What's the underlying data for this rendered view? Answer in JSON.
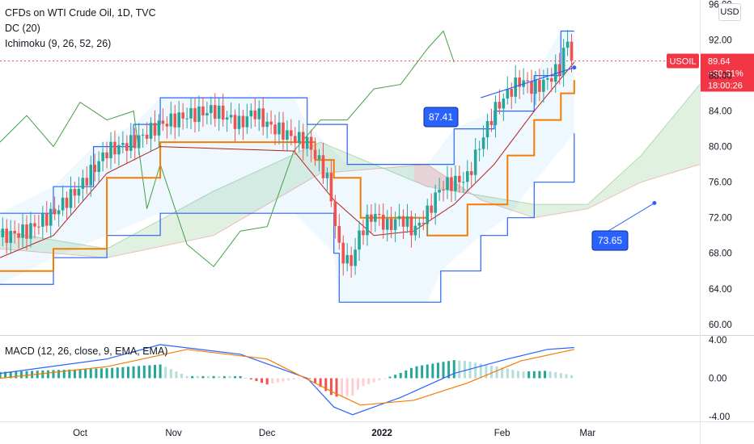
{
  "header": {
    "title": "CFDs on WTI Crude Oil, 1D, TVC",
    "indicator_dc": "DC (20)",
    "indicator_ichimoku": "Ichimoku (9, 26, 52, 26)",
    "currency_button": "USD"
  },
  "macd_pane": {
    "title": "MACD (12, 26, close, 9, EMA, EMA)"
  },
  "price_labels": {
    "symbol": "USOIL",
    "price": "89.64",
    "change": "+30.31%",
    "countdown": "18:00:26"
  },
  "annotations": [
    {
      "text": "87.41"
    },
    {
      "text": "73.65"
    }
  ],
  "colors": {
    "up": "#26a69a",
    "down": "#ef5350",
    "donchian": "#2962ff",
    "kijun": "#f57c00",
    "tenkan": "#b71c1c",
    "lagging": "#43a047",
    "cloud_up": "#c8e6c9",
    "cloud_down": "#ffcdd2",
    "macd": "#2962ff",
    "signal": "#f57c00",
    "hist_up_strong": "#26a69a",
    "hist_up_weak": "#b2dfdb",
    "hist_down_strong": "#ef5350",
    "hist_down_weak": "#ffcdd2",
    "symbol_bg": "#f23645"
  },
  "chart_data": {
    "type": "candlestick",
    "price_axis": {
      "ticks": [
        "96.00",
        "92.00",
        "88.00",
        "84.00",
        "80.00",
        "76.00",
        "72.00",
        "68.00",
        "64.00",
        "60.00"
      ],
      "range": [
        58.8,
        96.5
      ]
    },
    "macd_axis": {
      "ticks": [
        "4.00",
        "0.00",
        "-4.00"
      ],
      "range": [
        -4.5,
        4.5
      ]
    },
    "x_axis": {
      "ticks": [
        "Oct",
        "Nov",
        "Dec",
        "2022",
        "Feb",
        "Mar"
      ]
    },
    "last_price": 89.64,
    "price_series_keypoints": [
      [
        0,
        69.8
      ],
      [
        10,
        70.5
      ],
      [
        20,
        72.5
      ],
      [
        30,
        75.5
      ],
      [
        40,
        79.5
      ],
      [
        50,
        80.5
      ],
      [
        60,
        82.5
      ],
      [
        70,
        83.5
      ],
      [
        80,
        84.1
      ],
      [
        90,
        82.5
      ],
      [
        95,
        84.0
      ],
      [
        100,
        82.5
      ],
      [
        110,
        81.0
      ],
      [
        115,
        80.5
      ],
      [
        120,
        78.0
      ],
      [
        123,
        76.0
      ],
      [
        127,
        68.5
      ],
      [
        131,
        66.5
      ],
      [
        135,
        70.5
      ],
      [
        140,
        72.5
      ],
      [
        145,
        71.0
      ],
      [
        150,
        72.0
      ],
      [
        155,
        70.5
      ],
      [
        160,
        72.5
      ],
      [
        165,
        75.5
      ],
      [
        170,
        76.0
      ],
      [
        175,
        76.5
      ],
      [
        180,
        80.5
      ],
      [
        185,
        84.0
      ],
      [
        190,
        86.0
      ],
      [
        195,
        87.5
      ],
      [
        200,
        86.5
      ],
      [
        205,
        87.5
      ],
      [
        210,
        89.0
      ],
      [
        212,
        92.3
      ],
      [
        215,
        89.2
      ]
    ],
    "donchian_upper": [
      [
        0,
        72.5
      ],
      [
        20,
        75.5
      ],
      [
        35,
        80.0
      ],
      [
        50,
        82.5
      ],
      [
        60,
        85.5
      ],
      [
        110,
        85.5
      ],
      [
        115,
        82.5
      ],
      [
        130,
        78.0
      ],
      [
        160,
        78.0
      ],
      [
        170,
        82.0
      ],
      [
        185,
        84.0
      ],
      [
        200,
        88.0
      ],
      [
        210,
        93.0
      ],
      [
        215,
        93.0
      ]
    ],
    "donchian_lower": [
      [
        0,
        64.5
      ],
      [
        20,
        67.5
      ],
      [
        40,
        70.0
      ],
      [
        60,
        72.5
      ],
      [
        110,
        72.5
      ],
      [
        125,
        68.0
      ],
      [
        127,
        62.5
      ],
      [
        160,
        62.5
      ],
      [
        165,
        66.0
      ],
      [
        180,
        70.0
      ],
      [
        190,
        72.0
      ],
      [
        200,
        76.0
      ],
      [
        215,
        81.5
      ]
    ],
    "kijun": [
      [
        0,
        66.0
      ],
      [
        20,
        68.5
      ],
      [
        40,
        76.5
      ],
      [
        60,
        80.5
      ],
      [
        110,
        80.5
      ],
      [
        118,
        78.5
      ],
      [
        125,
        76.5
      ],
      [
        135,
        72.0
      ],
      [
        160,
        70.0
      ],
      [
        175,
        73.5
      ],
      [
        190,
        79.0
      ],
      [
        200,
        83.0
      ],
      [
        210,
        86.0
      ],
      [
        215,
        87.5
      ]
    ],
    "tenkan": [
      [
        0,
        67.5
      ],
      [
        20,
        70.0
      ],
      [
        40,
        77.0
      ],
      [
        60,
        80.0
      ],
      [
        110,
        79.5
      ],
      [
        125,
        74.0
      ],
      [
        140,
        70.0
      ],
      [
        155,
        70.5
      ],
      [
        170,
        73.5
      ],
      [
        185,
        78.0
      ],
      [
        200,
        84.0
      ],
      [
        215,
        89.5
      ]
    ],
    "lagging_span": [
      [
        0,
        80.5
      ],
      [
        10,
        83.5
      ],
      [
        20,
        80.0
      ],
      [
        30,
        85.0
      ],
      [
        40,
        83.0
      ],
      [
        50,
        84.0
      ],
      [
        55,
        73.0
      ],
      [
        60,
        78.0
      ],
      [
        70,
        69.0
      ],
      [
        80,
        66.5
      ],
      [
        90,
        70.5
      ],
      [
        100,
        71.0
      ],
      [
        110,
        79.5
      ],
      [
        120,
        83.0
      ],
      [
        130,
        83.0
      ],
      [
        140,
        86.5
      ],
      [
        150,
        87.0
      ],
      [
        160,
        91.0
      ],
      [
        166,
        93.0
      ],
      [
        170,
        89.5
      ]
    ],
    "cloud_span_a": [
      [
        0,
        70.5
      ],
      [
        40,
        68.5
      ],
      [
        80,
        75.0
      ],
      [
        120,
        80.5
      ],
      [
        160,
        75.5
      ],
      [
        180,
        74.5
      ],
      [
        200,
        73.5
      ],
      [
        220,
        73.5
      ],
      [
        240,
        79.0
      ],
      [
        262,
        87.0
      ]
    ],
    "cloud_span_b": [
      [
        0,
        68.5
      ],
      [
        40,
        67.5
      ],
      [
        80,
        70.0
      ],
      [
        120,
        77.0
      ],
      [
        160,
        78.0
      ],
      [
        180,
        74.0
      ],
      [
        200,
        72.0
      ],
      [
        220,
        73.0
      ],
      [
        240,
        76.0
      ],
      [
        262,
        78.0
      ]
    ],
    "macd_line": [
      [
        0,
        0.5
      ],
      [
        40,
        2.0
      ],
      [
        60,
        3.5
      ],
      [
        90,
        2.5
      ],
      [
        115,
        0.0
      ],
      [
        125,
        -3.0
      ],
      [
        132,
        -3.8
      ],
      [
        150,
        -2.0
      ],
      [
        170,
        0.5
      ],
      [
        190,
        2.0
      ],
      [
        205,
        3.0
      ],
      [
        215,
        3.2
      ]
    ],
    "signal_line": [
      [
        0,
        0.0
      ],
      [
        40,
        1.2
      ],
      [
        70,
        3.0
      ],
      [
        100,
        2.0
      ],
      [
        125,
        -1.5
      ],
      [
        135,
        -2.8
      ],
      [
        155,
        -2.3
      ],
      [
        175,
        -0.5
      ],
      [
        195,
        1.8
      ],
      [
        215,
        3.0
      ]
    ],
    "annotation_points": [
      {
        "label": "87.41",
        "x": 195,
        "price": 87.41
      },
      {
        "label": "73.65",
        "x": 245,
        "price": 73.65
      }
    ]
  }
}
